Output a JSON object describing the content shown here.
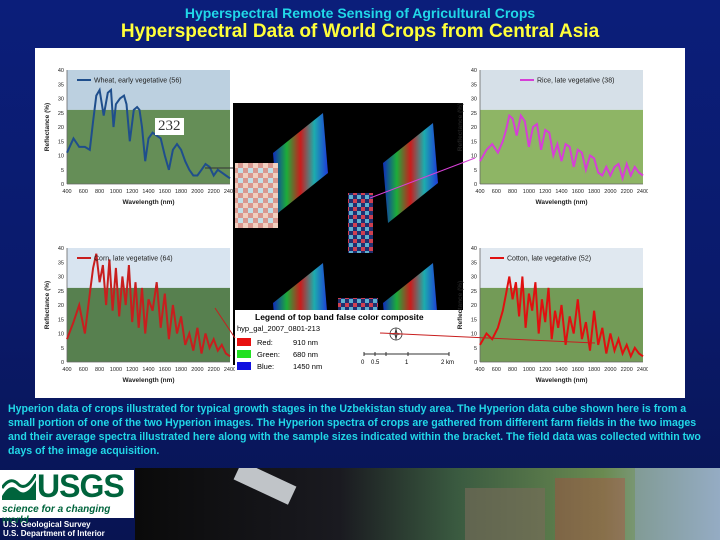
{
  "header": {
    "supertitle": "Hyperspectral Remote Sensing of Agricultural Crops",
    "title": "Hyperspectral Data of World Crops from Central Asia"
  },
  "colors": {
    "wheat": "#1f4e8c",
    "rice": "#d63fd6",
    "corn": "#c81e1e",
    "cotton": "#e01010"
  },
  "chart_data": [
    {
      "type": "line",
      "xlabel": "Wavelength (nm)",
      "ylabel": "Reflectance (%)",
      "xlim": [
        400,
        2400
      ],
      "ylim": [
        0,
        40
      ],
      "x_ticks": [
        400,
        600,
        800,
        1000,
        1200,
        1400,
        1600,
        1800,
        2000,
        2200,
        2400
      ],
      "y_ticks": [
        0,
        5,
        10,
        15,
        20,
        25,
        30,
        35,
        40
      ],
      "series": [
        {
          "name": "Wheat, early vegetative (56)",
          "x": [
            400,
            480,
            550,
            620,
            680,
            720,
            760,
            800,
            850,
            900,
            940,
            970,
            1000,
            1050,
            1100,
            1130,
            1170,
            1220,
            1260,
            1290,
            1320,
            1360,
            1400,
            1450,
            1500,
            1550,
            1600,
            1650,
            1700,
            1750,
            1800,
            1850,
            1900,
            1950,
            2000,
            2050,
            2100,
            2150,
            2200,
            2250,
            2300,
            2350,
            2400
          ],
          "y": [
            11,
            16,
            13,
            13,
            12,
            22,
            31,
            33,
            24,
            32,
            33,
            20,
            28,
            30,
            31,
            28,
            15,
            26,
            27,
            26,
            20,
            8,
            16,
            18,
            17,
            16,
            10,
            5,
            12,
            14,
            12,
            8,
            5,
            3,
            3,
            5,
            7,
            6,
            3,
            5,
            4,
            3,
            2
          ]
        }
      ]
    },
    {
      "type": "line",
      "xlabel": "Wavelength (nm)",
      "ylabel": "Reflectance (%)",
      "xlim": [
        400,
        2400
      ],
      "ylim": [
        0,
        40
      ],
      "x_ticks": [
        400,
        600,
        800,
        1000,
        1200,
        1400,
        1600,
        1800,
        2000,
        2200,
        2400
      ],
      "y_ticks": [
        0,
        5,
        10,
        15,
        20,
        25,
        30,
        35,
        40
      ],
      "series": [
        {
          "name": "Rice, late vegetative (38)",
          "x": [
            400,
            480,
            550,
            620,
            680,
            720,
            760,
            800,
            850,
            900,
            950,
            1000,
            1050,
            1100,
            1150,
            1200,
            1250,
            1300,
            1350,
            1400,
            1450,
            1500,
            1550,
            1600,
            1650,
            1700,
            1750,
            1800,
            1850,
            1900,
            1950,
            2000,
            2050,
            2100,
            2150,
            2200,
            2250,
            2300,
            2350,
            2400
          ],
          "y": [
            8,
            12,
            14,
            11,
            15,
            19,
            24,
            23,
            17,
            24,
            22,
            13,
            20,
            21,
            12,
            19,
            18,
            10,
            14,
            8,
            14,
            13,
            6,
            12,
            11,
            5,
            10,
            9,
            4,
            3,
            6,
            3,
            6,
            7,
            2,
            7,
            3,
            6,
            4,
            3
          ]
        }
      ]
    },
    {
      "type": "line",
      "xlabel": "Wavelength (nm)",
      "ylabel": "Reflectance (%)",
      "xlim": [
        400,
        2400
      ],
      "ylim": [
        0,
        40
      ],
      "x_ticks": [
        400,
        600,
        800,
        1000,
        1200,
        1400,
        1600,
        1800,
        2000,
        2200,
        2400
      ],
      "y_ticks": [
        0,
        5,
        10,
        15,
        20,
        25,
        30,
        35,
        40
      ],
      "series": [
        {
          "name": "Corn, late vegetative (64)",
          "x": [
            400,
            480,
            550,
            620,
            680,
            720,
            760,
            800,
            840,
            880,
            920,
            960,
            1000,
            1040,
            1080,
            1120,
            1160,
            1200,
            1240,
            1280,
            1320,
            1360,
            1400,
            1450,
            1500,
            1550,
            1600,
            1650,
            1700,
            1750,
            1800,
            1850,
            1900,
            1950,
            2000,
            2050,
            2100,
            2150,
            2200,
            2250,
            2300,
            2350,
            2400
          ],
          "y": [
            8,
            14,
            20,
            10,
            24,
            33,
            38,
            28,
            34,
            20,
            36,
            18,
            33,
            16,
            30,
            20,
            34,
            14,
            28,
            12,
            26,
            10,
            22,
            18,
            28,
            12,
            24,
            8,
            20,
            10,
            16,
            6,
            10,
            4,
            12,
            3,
            10,
            5,
            8,
            4,
            6,
            3,
            2
          ]
        }
      ]
    },
    {
      "type": "line",
      "xlabel": "Wavelength (nm)",
      "ylabel": "Reflectance (%)",
      "xlim": [
        400,
        2400
      ],
      "ylim": [
        0,
        40
      ],
      "x_ticks": [
        400,
        600,
        800,
        1000,
        1200,
        1400,
        1600,
        1800,
        2000,
        2200,
        2400
      ],
      "y_ticks": [
        0,
        5,
        10,
        15,
        20,
        25,
        30,
        35,
        40
      ],
      "series": [
        {
          "name": "Cotton, late vegetative (52)",
          "x": [
            400,
            480,
            550,
            620,
            680,
            720,
            760,
            800,
            840,
            880,
            920,
            960,
            1000,
            1040,
            1080,
            1120,
            1160,
            1200,
            1240,
            1280,
            1320,
            1360,
            1400,
            1450,
            1500,
            1550,
            1600,
            1650,
            1700,
            1750,
            1800,
            1850,
            1900,
            1950,
            2000,
            2050,
            2100,
            2150,
            2200,
            2250,
            2300,
            2350,
            2400
          ],
          "y": [
            6,
            10,
            8,
            12,
            18,
            24,
            30,
            22,
            28,
            16,
            30,
            12,
            24,
            18,
            28,
            10,
            22,
            14,
            26,
            8,
            18,
            12,
            20,
            6,
            16,
            10,
            22,
            8,
            14,
            4,
            18,
            6,
            12,
            3,
            10,
            4,
            8,
            3,
            6,
            2,
            5,
            3,
            2
          ]
        }
      ]
    }
  ],
  "composite": {
    "legend_title": "Legend of top band false color composite",
    "image_id": "hyp_gal_2007_0801-213",
    "bands": [
      {
        "label": "Red:",
        "value": "910 nm",
        "color": "#e81010"
      },
      {
        "label": "Green:",
        "value": "680 nm",
        "color": "#22e022"
      },
      {
        "label": "Blue:",
        "value": "1450 nm",
        "color": "#1010e0"
      }
    ],
    "scale_labels": [
      "0",
      "0.5",
      "1",
      "2 km"
    ],
    "photo_label": "232"
  },
  "caption": "Hyperion data of crops illustrated for typical growth stages in the Uzbekistan study area. The Hyperion data cube shown here is from a small portion of one of the two Hyperion images. The Hyperion spectra of crops are gathered from different farm fields in the two images and their average spectra illustrated here along with the sample sizes indicated within the bracket. The field data was collected within two days of the image acquisition.",
  "footer": {
    "logo_text": "USGS",
    "tagline": "science for a changing world",
    "org1": "U.S. Geological Survey",
    "org2": "U.S. Department of Interior"
  }
}
